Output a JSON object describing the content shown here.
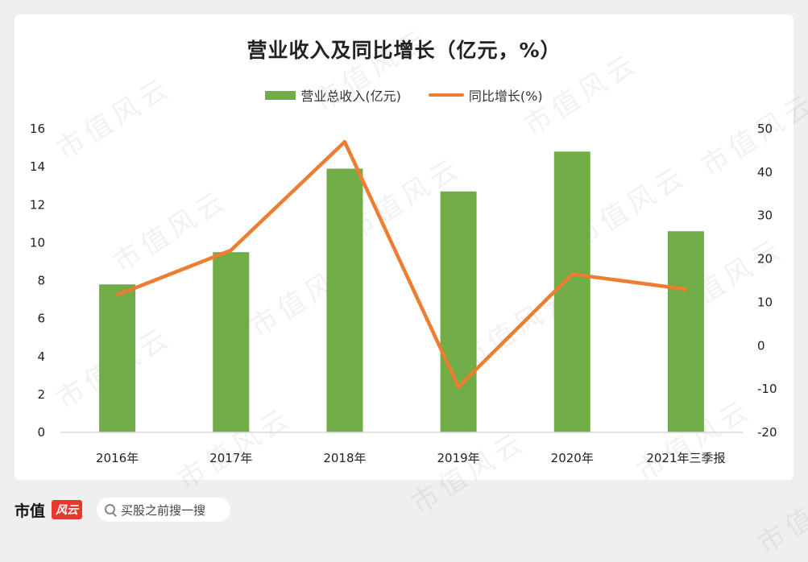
{
  "watermark_text": "市值风云",
  "chart_data": {
    "type": "bar+line",
    "title": "营业收入及同比增长（亿元，%）",
    "categories": [
      "2016年",
      "2017年",
      "2018年",
      "2019年",
      "2020年",
      "2021年三季报"
    ],
    "series": [
      {
        "name": "营业总收入(亿元)",
        "type": "bar",
        "axis": "left",
        "color": "#70ad47",
        "values": [
          7.8,
          9.5,
          13.9,
          12.7,
          14.8,
          10.6
        ]
      },
      {
        "name": "同比增长(%)",
        "type": "line",
        "axis": "right",
        "color": "#ed7d31",
        "values": [
          11.7,
          22.0,
          47.0,
          -9.5,
          16.5,
          13.0
        ]
      }
    ],
    "y_left": {
      "min": 0,
      "max": 16,
      "step": 2,
      "ticks": [
        "0",
        "2",
        "4",
        "6",
        "8",
        "10",
        "12",
        "14",
        "16"
      ]
    },
    "y_right": {
      "min": -20,
      "max": 50,
      "step": 10,
      "ticks": [
        "-20",
        "-10",
        "0",
        "10",
        "20",
        "30",
        "40",
        "50"
      ]
    },
    "legend_position": "top",
    "grid": false
  },
  "footer": {
    "brand_name": "市值",
    "brand_seal": "风云",
    "search_placeholder": "买股之前搜一搜",
    "search_icon": "search-icon"
  }
}
